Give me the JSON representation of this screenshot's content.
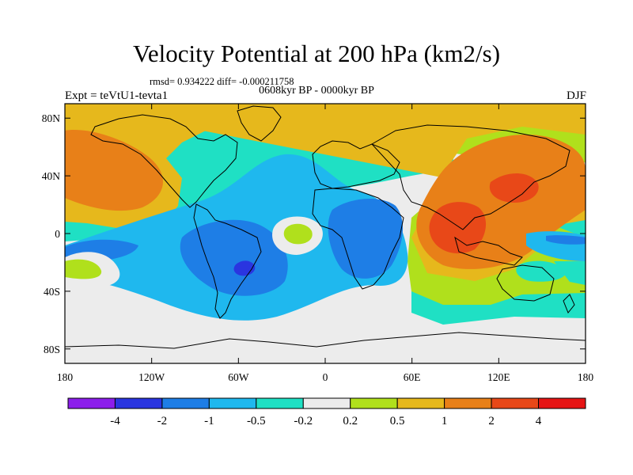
{
  "title": "Velocity Potential at 200 hPa (km2/s)",
  "subtitle_stats": "rmsd= 0.934222 diff= -0.000211758",
  "subtitle_period": "0608kyr BP - 0000kyr BP",
  "label_left": "Expt = teVtU1-tevta1",
  "label_right": "DJF",
  "map_data": {
    "type": "contour-map",
    "projection": "cylindrical-equidistant",
    "lon_range": [
      -180,
      180
    ],
    "lat_range": [
      -90,
      90
    ],
    "lon_ticks": [
      {
        "value": -180,
        "label": "180"
      },
      {
        "value": -120,
        "label": "120W"
      },
      {
        "value": -60,
        "label": "60W"
      },
      {
        "value": 0,
        "label": "0"
      },
      {
        "value": 60,
        "label": "60E"
      },
      {
        "value": 120,
        "label": "120E"
      },
      {
        "value": 180,
        "label": "180"
      }
    ],
    "lat_ticks": [
      {
        "value": 80,
        "label": "80N"
      },
      {
        "value": 40,
        "label": "40N"
      },
      {
        "value": 0,
        "label": "0"
      },
      {
        "value": -40,
        "label": "40S"
      },
      {
        "value": -80,
        "label": "80S"
      }
    ]
  },
  "colorbar": {
    "levels": [
      "-4",
      "-2",
      "-1",
      "-0.5",
      "-0.2",
      "0.2",
      "0.5",
      "1",
      "2",
      "4"
    ],
    "colors": [
      "#8c1eeb",
      "#2a35e0",
      "#1e7ee6",
      "#1fb8ee",
      "#1fe0c4",
      "#ececec",
      "#b0e01c",
      "#e6b81c",
      "#e88018",
      "#e84818",
      "#e61414"
    ]
  }
}
